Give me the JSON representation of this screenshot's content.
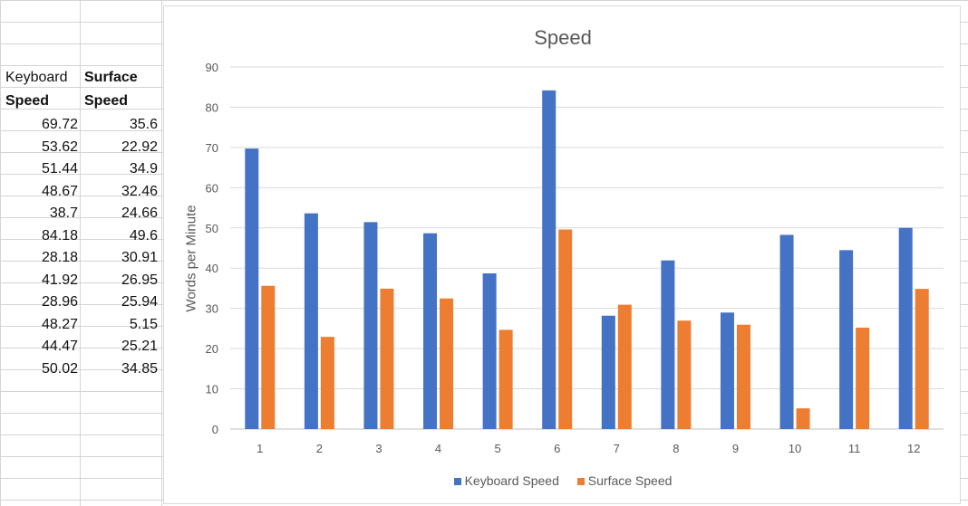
{
  "sheet": {
    "headers": [
      {
        "a": "Keyboard",
        "b": "Surface"
      },
      {
        "a": "Speed",
        "b": "Speed"
      }
    ],
    "rows": [
      {
        "a": "69.72",
        "b": "35.6"
      },
      {
        "a": "53.62",
        "b": "22.92"
      },
      {
        "a": "51.44",
        "b": "34.9"
      },
      {
        "a": "48.67",
        "b": "32.46"
      },
      {
        "a": "38.7",
        "b": "24.66"
      },
      {
        "a": "84.18",
        "b": "49.6"
      },
      {
        "a": "28.18",
        "b": "30.91"
      },
      {
        "a": "41.92",
        "b": "26.95"
      },
      {
        "a": "28.96",
        "b": "25.94"
      },
      {
        "a": "48.27",
        "b": "5.15"
      },
      {
        "a": "44.47",
        "b": "25.21"
      },
      {
        "a": "50.02",
        "b": "34.85"
      }
    ]
  },
  "chart_data": {
    "type": "bar",
    "title": "Speed",
    "xlabel": "",
    "ylabel": "Words per Minute",
    "categories": [
      "1",
      "2",
      "3",
      "4",
      "5",
      "6",
      "7",
      "8",
      "9",
      "10",
      "11",
      "12"
    ],
    "ylim": [
      0,
      90
    ],
    "yticks": [
      0,
      10,
      20,
      30,
      40,
      50,
      60,
      70,
      80,
      90
    ],
    "grid": true,
    "legend": "bottom",
    "series": [
      {
        "name": "Keyboard Speed",
        "color": "#4472C4",
        "values": [
          69.72,
          53.62,
          51.44,
          48.67,
          38.7,
          84.18,
          28.18,
          41.92,
          28.96,
          48.27,
          44.47,
          50.02
        ]
      },
      {
        "name": "Surface Speed",
        "color": "#ED7D31",
        "values": [
          35.6,
          22.92,
          34.9,
          32.46,
          24.66,
          49.6,
          30.91,
          26.95,
          25.94,
          5.15,
          25.21,
          34.85
        ]
      }
    ]
  }
}
